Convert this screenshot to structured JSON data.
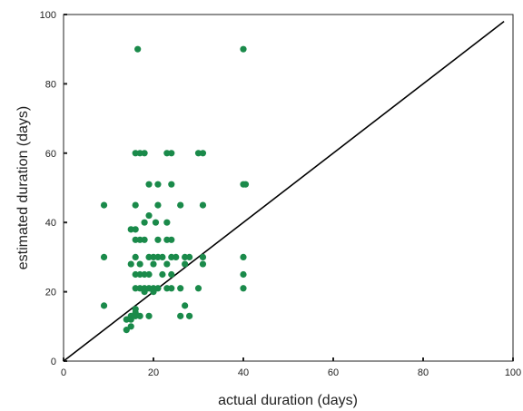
{
  "chart_data": {
    "type": "scatter",
    "title": "",
    "xlabel": "actual duration (days)",
    "ylabel": "estimated duration (days)",
    "xlim": [
      0,
      100
    ],
    "ylim": [
      0,
      100
    ],
    "x_ticks": [
      0,
      20,
      40,
      60,
      80,
      100
    ],
    "y_ticks": [
      0,
      20,
      40,
      60,
      80,
      100
    ],
    "x_tick_labels": [
      "0",
      "20",
      "40",
      "60",
      "80",
      "100"
    ],
    "y_tick_labels": [
      "0",
      "20",
      "40",
      "60",
      "80",
      "100"
    ],
    "grid": false,
    "legend": "none",
    "point_color": "#1a8a4a",
    "line_color": "#000000",
    "reference_line": {
      "from": [
        0,
        0
      ],
      "to": [
        98,
        98
      ]
    },
    "series": [
      {
        "points": [
          [
            16.5,
            90
          ],
          [
            40,
            90
          ],
          [
            16,
            60
          ],
          [
            17,
            60
          ],
          [
            18,
            60
          ],
          [
            23,
            60
          ],
          [
            24,
            60
          ],
          [
            30,
            60
          ],
          [
            31,
            60
          ],
          [
            40,
            51
          ],
          [
            40.5,
            51
          ],
          [
            19,
            51
          ],
          [
            21,
            51
          ],
          [
            24,
            51
          ],
          [
            9,
            45
          ],
          [
            16,
            45
          ],
          [
            21,
            45
          ],
          [
            26,
            45
          ],
          [
            31,
            45
          ],
          [
            15,
            38
          ],
          [
            16,
            38
          ],
          [
            18,
            40
          ],
          [
            20.5,
            40
          ],
          [
            23,
            40
          ],
          [
            19,
            42
          ],
          [
            16,
            35
          ],
          [
            17,
            35
          ],
          [
            18,
            35
          ],
          [
            21,
            35
          ],
          [
            23,
            35
          ],
          [
            24,
            35
          ],
          [
            9,
            30
          ],
          [
            16,
            30
          ],
          [
            19,
            30
          ],
          [
            20,
            30
          ],
          [
            21,
            30
          ],
          [
            22,
            30
          ],
          [
            24,
            30
          ],
          [
            25,
            30
          ],
          [
            27,
            30
          ],
          [
            28,
            30
          ],
          [
            31,
            30
          ],
          [
            40,
            30
          ],
          [
            15,
            28
          ],
          [
            17,
            28
          ],
          [
            20,
            28
          ],
          [
            23,
            28
          ],
          [
            27,
            28
          ],
          [
            31,
            28
          ],
          [
            16,
            25
          ],
          [
            17,
            25
          ],
          [
            18,
            25
          ],
          [
            19,
            25
          ],
          [
            22,
            25
          ],
          [
            24,
            25
          ],
          [
            40,
            25
          ],
          [
            16,
            21
          ],
          [
            17,
            21
          ],
          [
            18,
            21
          ],
          [
            19,
            21
          ],
          [
            20,
            21
          ],
          [
            21,
            21
          ],
          [
            23,
            21
          ],
          [
            24,
            21
          ],
          [
            26,
            21
          ],
          [
            30,
            21
          ],
          [
            40,
            21
          ],
          [
            9,
            16
          ],
          [
            27,
            16
          ],
          [
            15,
            13
          ],
          [
            16,
            13
          ],
          [
            17,
            13
          ],
          [
            19,
            13
          ],
          [
            26,
            13
          ],
          [
            28,
            13
          ],
          [
            14,
            9
          ],
          [
            15,
            10
          ],
          [
            15,
            12
          ],
          [
            16,
            14
          ],
          [
            16,
            15
          ],
          [
            14,
            12
          ],
          [
            20,
            20
          ],
          [
            18,
            20
          ]
        ]
      }
    ]
  }
}
